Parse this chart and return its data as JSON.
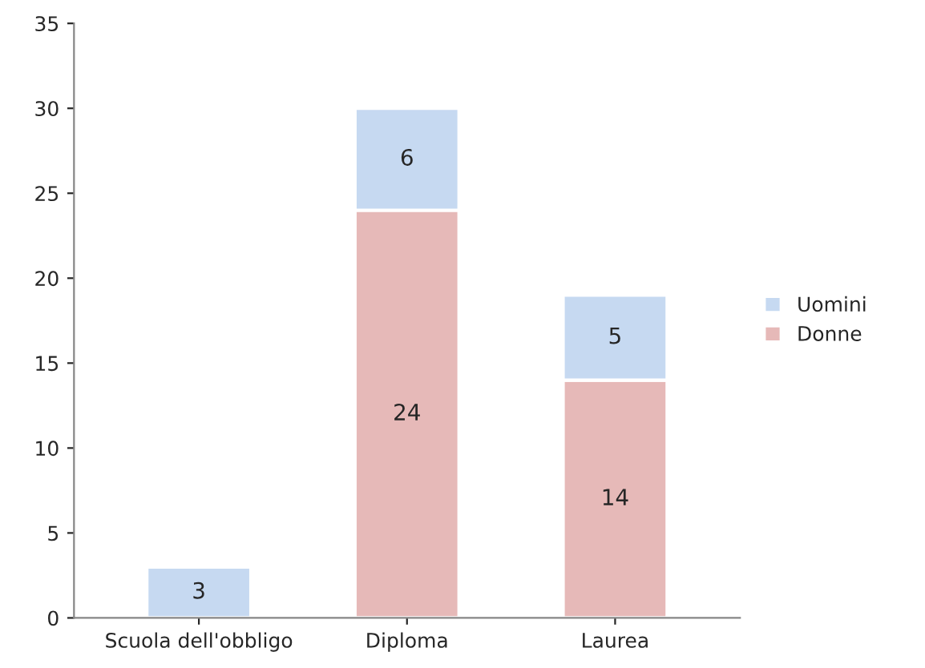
{
  "chart_data": {
    "type": "bar",
    "stacked": true,
    "categories": [
      "Scuola dell'obbligo",
      "Diploma",
      "Laurea"
    ],
    "series": [
      {
        "name": "Donne",
        "color": "#e6b9b8",
        "values": [
          null,
          24,
          14
        ]
      },
      {
        "name": "Uomini",
        "color": "#c6d9f1",
        "values": [
          3,
          6,
          5
        ]
      }
    ],
    "ylim": [
      0,
      35
    ],
    "yticks": [
      0,
      5,
      10,
      15,
      20,
      25,
      30,
      35
    ],
    "data_labels": true,
    "grid": false,
    "legend": "right"
  }
}
